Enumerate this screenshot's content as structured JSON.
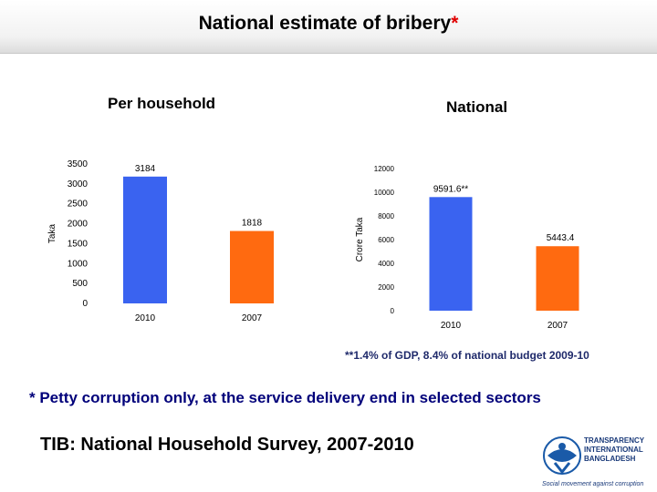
{
  "header": {
    "title": "National estimate of bribery",
    "title_mark": "*"
  },
  "chart_data": [
    {
      "type": "bar",
      "subtitle": "Per household",
      "ylabel": "Taka",
      "categories": [
        "2010",
        "2007"
      ],
      "values": [
        3184,
        1818
      ],
      "labels": [
        "3184",
        "1818"
      ],
      "colors": [
        "#3a63f0",
        "#ff6a10"
      ],
      "ylim": [
        0,
        3500
      ],
      "yticks": [
        0,
        500,
        1000,
        1500,
        2000,
        2500,
        3000,
        3500
      ],
      "grid": false
    },
    {
      "type": "bar",
      "subtitle": "National",
      "ylabel": "Crore Taka",
      "categories": [
        "2010",
        "2007"
      ],
      "values": [
        9591.6,
        5443.4
      ],
      "labels": [
        "9591.6**",
        "5443.4"
      ],
      "colors": [
        "#3a63f0",
        "#ff6a10"
      ],
      "ylim": [
        0,
        12000
      ],
      "yticks": [
        0,
        2000,
        4000,
        6000,
        8000,
        10000,
        12000
      ],
      "grid": false
    }
  ],
  "note": "**1.4% of GDP, 8.4% of national budget 2009-10",
  "footnote": "* Petty corruption only, at the service delivery end in selected sectors",
  "source": "TIB: National Household Survey, 2007-2010",
  "logo": {
    "lines": [
      "TRANSPARENCY",
      "INTERNATIONAL",
      "BANGLADESH"
    ],
    "tagline": "Social movement against corruption"
  }
}
